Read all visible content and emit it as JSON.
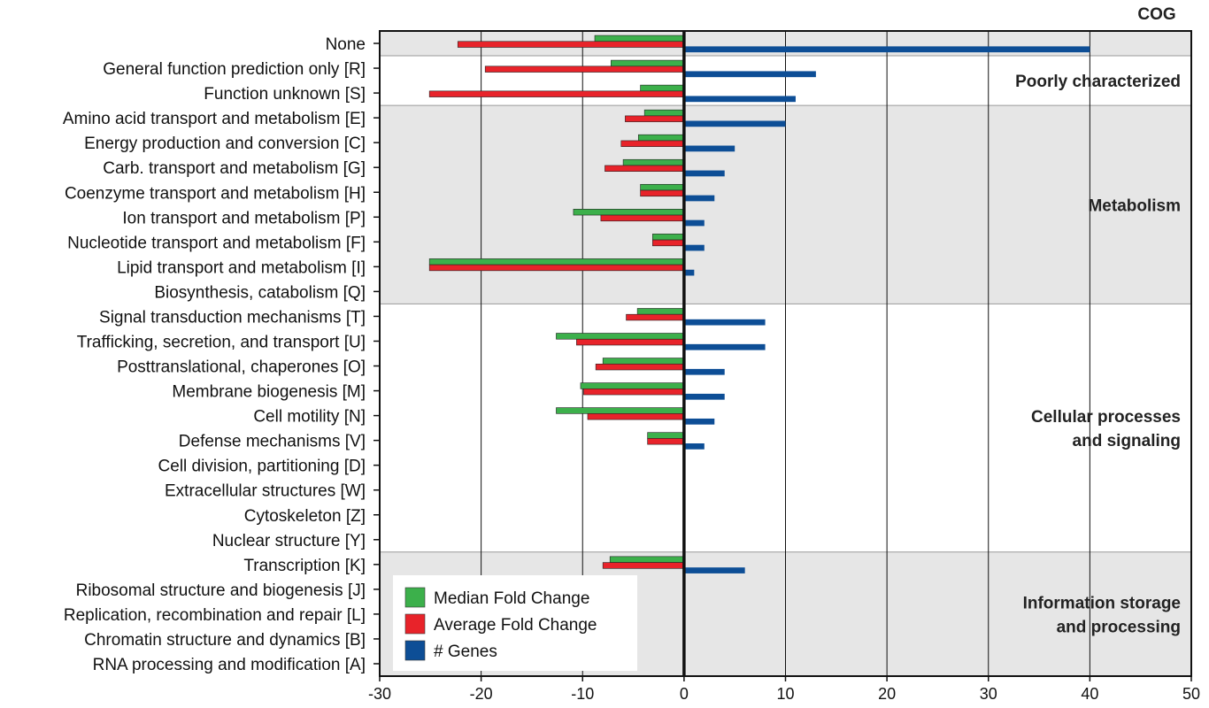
{
  "chart_data": {
    "type": "bar",
    "orientation": "horizontal",
    "title": "COG",
    "xlim": [
      -30,
      50
    ],
    "x_ticks": [
      -30,
      -20,
      -10,
      0,
      10,
      20,
      30,
      40,
      50
    ],
    "grid": "vertical",
    "legend_position": "bottom-left",
    "categories": [
      "None",
      "General function prediction only [R]",
      "Function unknown [S]",
      "Amino acid transport and metabolism [E]",
      "Energy production and conversion [C]",
      "Carb. transport and metabolism [G]",
      "Coenzyme transport and metabolism [H]",
      "Ion transport and metabolism [P]",
      "Nucleotide transport and metabolism [F]",
      "Lipid transport and metabolism [I]",
      "Biosynthesis, catabolism [Q]",
      "Signal transduction mechanisms [T]",
      "Trafficking, secretion, and transport [U]",
      "Posttranslational, chaperones [O]",
      "Membrane biogenesis [M]",
      "Cell motility [N]",
      "Defense mechanisms [V]",
      "Cell division, partitioning [D]",
      "Extracellular structures [W]",
      "Cytoskeleton [Z]",
      "Nuclear structure [Y]",
      "Transcription [K]",
      "Ribosomal structure and biogenesis [J]",
      "Replication, recombination and repair [L]",
      "Chromatin structure and dynamics [B]",
      "RNA processing and modification [A]"
    ],
    "series": [
      {
        "name": "Median Fold Change",
        "color": "#3cb04b",
        "values": [
          -8.8,
          -7.2,
          -4.3,
          -3.9,
          -4.5,
          -6.0,
          -4.3,
          -10.9,
          -3.1,
          -25.1,
          0,
          -4.6,
          -12.6,
          -8.0,
          -10.2,
          -12.6,
          -3.6,
          0,
          0,
          0,
          0,
          -7.3,
          0,
          0,
          0,
          0
        ]
      },
      {
        "name": "Average Fold Change",
        "color": "#e8232a",
        "values": [
          -22.3,
          -19.6,
          -25.1,
          -5.8,
          -6.2,
          -7.8,
          -4.3,
          -8.2,
          -3.1,
          -25.1,
          0,
          -5.7,
          -10.6,
          -8.7,
          -9.9,
          -9.5,
          -3.6,
          0,
          0,
          0,
          0,
          -8.0,
          0,
          0,
          0,
          0
        ]
      },
      {
        "name": "# Genes",
        "color": "#0d4e96",
        "values": [
          40,
          13,
          11,
          10,
          5,
          4,
          3,
          2,
          2,
          1,
          0,
          8,
          8,
          4,
          4,
          3,
          2,
          0,
          0,
          0,
          0,
          6,
          0,
          0,
          0,
          0
        ]
      }
    ],
    "groups": [
      {
        "label_lines": [
          ""
        ],
        "start": 0,
        "end": 0,
        "shaded": true
      },
      {
        "label_lines": [
          "Poorly characterized"
        ],
        "start": 1,
        "end": 2,
        "shaded": false
      },
      {
        "label_lines": [
          "Metabolism"
        ],
        "start": 3,
        "end": 10,
        "shaded": true
      },
      {
        "label_lines": [
          "Cellular processes",
          "and signaling"
        ],
        "start": 11,
        "end": 20,
        "shaded": false
      },
      {
        "label_lines": [
          "Information storage",
          "and processing"
        ],
        "start": 21,
        "end": 25,
        "shaded": true
      }
    ]
  },
  "colors": {
    "shade": "#e6e6e6",
    "axis": "#111111",
    "bar_stroke": "#222222"
  }
}
